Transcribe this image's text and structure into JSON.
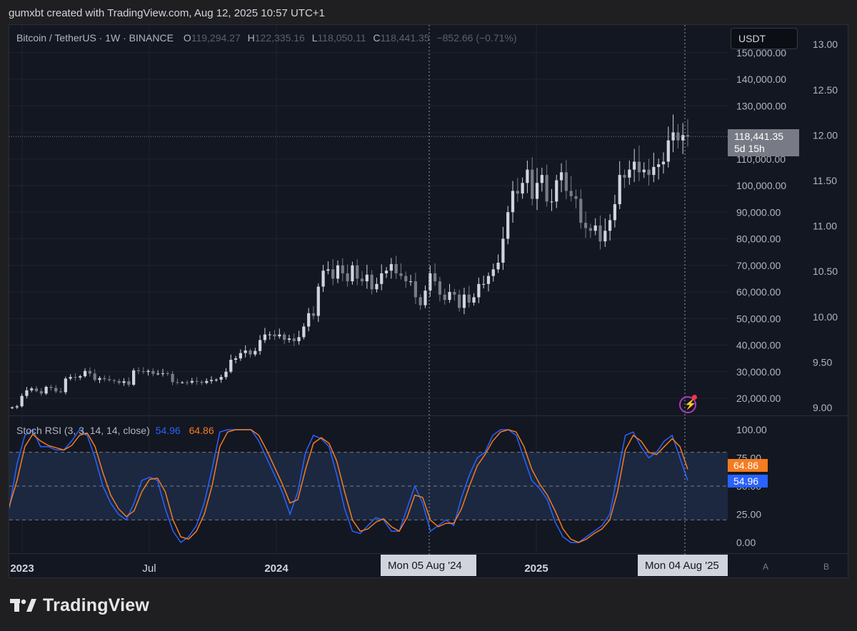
{
  "header": {
    "credit": "gumxbt created with TradingView.com, Aug 12, 2025 10:57 UTC+1"
  },
  "legend": {
    "symbol": "Bitcoin / TetherUS · 1W · BINANCE",
    "open_label": "O",
    "open": "119,294.27",
    "high_label": "H",
    "high": "122,335.16",
    "low_label": "L",
    "low": "118,050.11",
    "close_label": "C",
    "close": "118,441.35",
    "change": "−852.66 (−0.71%)"
  },
  "currency_button": "USDT",
  "price_tag": {
    "price": "118,441.35",
    "countdown": "5d 15h"
  },
  "stoch": {
    "title": "Stoch RSI (3, 3, 14, 14, close)",
    "k_value": "54.96",
    "d_value": "64.86"
  },
  "crosshair_dates": {
    "left": "Mon 05 Aug '24",
    "right": "Mon 04 Aug '25"
  },
  "scale_buttons": {
    "a": "A",
    "b": "B"
  },
  "footer": {
    "brand": "TradingView"
  },
  "colors": {
    "up": "#d1d4dc",
    "down": "#787b86",
    "k_line": "#2962ff",
    "d_line": "#f57c1f",
    "band_fill": "#1e2a44",
    "background": "#131722"
  },
  "chart_data": [
    {
      "type": "candlestick",
      "title": "Bitcoin / TetherUS · 1W · BINANCE",
      "price_axis_ticks": [
        "20,000.00",
        "30,000.00",
        "40,000.00",
        "50,000.00",
        "60,000.00",
        "70,000.00",
        "80,000.00",
        "90,000.00",
        "100,000.00",
        "110,000.00",
        "120,000.00",
        "130,000.00",
        "140,000.00",
        "150,000.00"
      ],
      "secondary_axis_ticks": [
        "9.00",
        "9.50",
        "10.00",
        "10.50",
        "11.00",
        "11.50",
        "12.00",
        "12.50",
        "13.00"
      ],
      "x_ticks": [
        "2023",
        "Jul",
        "2024",
        "2025"
      ],
      "weekly_close": [
        16600,
        17000,
        20900,
        23000,
        23700,
        22700,
        21800,
        24300,
        23900,
        22600,
        22300,
        27400,
        28000,
        27800,
        28300,
        30300,
        29300,
        26900,
        27600,
        27200,
        26800,
        26500,
        25800,
        26400,
        25100,
        30500,
        30200,
        29900,
        30300,
        29200,
        29300,
        29400,
        29200,
        26100,
        26000,
        26000,
        25900,
        26500,
        26200,
        25800,
        26500,
        26900,
        27000,
        28000,
        30000,
        34500,
        35000,
        37000,
        38000,
        36500,
        37800,
        41900,
        44000,
        44000,
        43300,
        44000,
        42000,
        42500,
        41500,
        43000,
        47000,
        52000,
        51000,
        62000,
        68000,
        68500,
        65000,
        70000,
        67000,
        64000,
        70000,
        65000,
        64000,
        66500,
        61000,
        63000,
        67000,
        68000,
        70500,
        67000,
        66000,
        64000,
        64000,
        58000,
        55000,
        60500,
        67000,
        64000,
        59000,
        57000,
        60000,
        59000,
        54000,
        59000,
        56000,
        58000,
        63000,
        63000,
        66000,
        68500,
        71000,
        80000,
        90000,
        98000,
        97000,
        101000,
        106000,
        95000,
        101000,
        104000,
        94000,
        94000,
        102000,
        105000,
        98000,
        96000,
        95000,
        86000,
        84000,
        83000,
        85000,
        79000,
        83000,
        87000,
        93000,
        104000,
        103000,
        106000,
        109000,
        105000,
        106000,
        104000,
        107000,
        108000,
        109000,
        117000,
        120000,
        117000,
        119000,
        118441
      ]
    },
    {
      "type": "line",
      "title": "Stoch RSI (3, 3, 14, 14, close)",
      "y_ticks": [
        "0.00",
        "25.00",
        "50.00",
        "75.00",
        "100.00"
      ],
      "bands": [
        20,
        50,
        80
      ],
      "series": [
        {
          "name": "K",
          "values": [
            30,
            70,
            95,
            100,
            85,
            85,
            82,
            82,
            90,
            100,
            95,
            75,
            50,
            35,
            25,
            20,
            35,
            55,
            58,
            55,
            30,
            10,
            0,
            5,
            15,
            35,
            65,
            98,
            100,
            100,
            100,
            100,
            90,
            75,
            60,
            45,
            25,
            45,
            80,
            95,
            92,
            85,
            60,
            30,
            10,
            8,
            15,
            22,
            20,
            10,
            10,
            30,
            50,
            35,
            10,
            15,
            20,
            15,
            40,
            60,
            75,
            80,
            95,
            100,
            100,
            95,
            75,
            55,
            48,
            38,
            18,
            5,
            0,
            0,
            5,
            10,
            15,
            25,
            60,
            95,
            98,
            85,
            75,
            80,
            90,
            95,
            75,
            54.96
          ]
        },
        {
          "name": "D",
          "values": [
            32,
            55,
            85,
            96,
            90,
            86,
            84,
            82,
            86,
            95,
            97,
            85,
            62,
            42,
            30,
            23,
            28,
            45,
            56,
            57,
            45,
            20,
            5,
            3,
            10,
            25,
            50,
            85,
            98,
            100,
            100,
            100,
            95,
            82,
            67,
            52,
            35,
            38,
            65,
            88,
            93,
            88,
            72,
            45,
            20,
            10,
            12,
            18,
            21,
            14,
            10,
            22,
            42,
            40,
            20,
            14,
            17,
            17,
            30,
            50,
            68,
            78,
            90,
            98,
            100,
            98,
            85,
            65,
            52,
            42,
            28,
            12,
            3,
            0,
            3,
            8,
            12,
            20,
            45,
            82,
            95,
            90,
            80,
            78,
            85,
            92,
            85,
            64.86
          ]
        }
      ]
    }
  ]
}
